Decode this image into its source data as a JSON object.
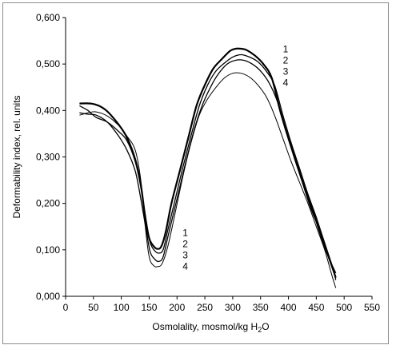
{
  "chart_data": {
    "type": "line",
    "title": "",
    "xlabel_parts": [
      "Osmolality, mosmol/kg H",
      "2",
      "O"
    ],
    "ylabel": "Deformability index, rel. units",
    "xlim": [
      0,
      550
    ],
    "ylim": [
      0,
      0.6
    ],
    "x_ticks": [
      0,
      50,
      100,
      150,
      200,
      250,
      300,
      350,
      400,
      450,
      500,
      550
    ],
    "y_ticks": [
      0,
      0.1,
      0.2,
      0.3,
      0.4,
      0.5,
      0.6
    ],
    "x_tick_labels": [
      "0",
      "50",
      "100",
      "150",
      "200",
      "250",
      "300",
      "350",
      "400",
      "450",
      "500",
      "550"
    ],
    "y_tick_labels": [
      "0,000",
      "0,100",
      "0,200",
      "0,300",
      "0,400",
      "0,500",
      "0,600"
    ],
    "grid": false,
    "legend": "none",
    "line_color": "#000000",
    "series": [
      {
        "label": "1",
        "stroke_width": 2.2,
        "points": [
          [
            25,
            0.415
          ],
          [
            45,
            0.415
          ],
          [
            60,
            0.41
          ],
          [
            75,
            0.398
          ],
          [
            95,
            0.37
          ],
          [
            110,
            0.342
          ],
          [
            125,
            0.295
          ],
          [
            135,
            0.24
          ],
          [
            143,
            0.17
          ],
          [
            150,
            0.125
          ],
          [
            158,
            0.108
          ],
          [
            165,
            0.102
          ],
          [
            172,
            0.108
          ],
          [
            180,
            0.14
          ],
          [
            190,
            0.2
          ],
          [
            205,
            0.27
          ],
          [
            220,
            0.34
          ],
          [
            235,
            0.41
          ],
          [
            250,
            0.455
          ],
          [
            265,
            0.49
          ],
          [
            280,
            0.51
          ],
          [
            295,
            0.528
          ],
          [
            305,
            0.533
          ],
          [
            315,
            0.533
          ],
          [
            325,
            0.53
          ],
          [
            340,
            0.518
          ],
          [
            355,
            0.5
          ],
          [
            370,
            0.47
          ],
          [
            385,
            0.4
          ],
          [
            400,
            0.34
          ],
          [
            415,
            0.285
          ],
          [
            430,
            0.23
          ],
          [
            445,
            0.18
          ],
          [
            460,
            0.125
          ],
          [
            475,
            0.075
          ],
          [
            485,
            0.04
          ]
        ]
      },
      {
        "label": "2",
        "stroke_width": 1.3,
        "points": [
          [
            25,
            0.41
          ],
          [
            40,
            0.4
          ],
          [
            55,
            0.385
          ],
          [
            75,
            0.375
          ],
          [
            95,
            0.355
          ],
          [
            110,
            0.335
          ],
          [
            125,
            0.29
          ],
          [
            135,
            0.235
          ],
          [
            145,
            0.16
          ],
          [
            152,
            0.115
          ],
          [
            160,
            0.098
          ],
          [
            167,
            0.093
          ],
          [
            175,
            0.1
          ],
          [
            183,
            0.14
          ],
          [
            195,
            0.2
          ],
          [
            210,
            0.275
          ],
          [
            225,
            0.345
          ],
          [
            240,
            0.41
          ],
          [
            255,
            0.455
          ],
          [
            270,
            0.485
          ],
          [
            285,
            0.502
          ],
          [
            300,
            0.515
          ],
          [
            315,
            0.52
          ],
          [
            330,
            0.515
          ],
          [
            345,
            0.505
          ],
          [
            360,
            0.485
          ],
          [
            375,
            0.455
          ],
          [
            390,
            0.39
          ],
          [
            405,
            0.33
          ],
          [
            420,
            0.275
          ],
          [
            435,
            0.22
          ],
          [
            450,
            0.17
          ],
          [
            465,
            0.115
          ],
          [
            480,
            0.06
          ],
          [
            485,
            0.035
          ]
        ]
      },
      {
        "label": "3",
        "stroke_width": 1.3,
        "points": [
          [
            25,
            0.395
          ],
          [
            40,
            0.392
          ],
          [
            55,
            0.39
          ],
          [
            75,
            0.375
          ],
          [
            95,
            0.345
          ],
          [
            110,
            0.315
          ],
          [
            125,
            0.27
          ],
          [
            135,
            0.21
          ],
          [
            145,
            0.14
          ],
          [
            152,
            0.095
          ],
          [
            160,
            0.08
          ],
          [
            167,
            0.075
          ],
          [
            175,
            0.085
          ],
          [
            185,
            0.135
          ],
          [
            200,
            0.21
          ],
          [
            215,
            0.285
          ],
          [
            230,
            0.355
          ],
          [
            245,
            0.41
          ],
          [
            260,
            0.45
          ],
          [
            275,
            0.48
          ],
          [
            290,
            0.5
          ],
          [
            305,
            0.508
          ],
          [
            320,
            0.508
          ],
          [
            335,
            0.5
          ],
          [
            350,
            0.485
          ],
          [
            365,
            0.46
          ],
          [
            380,
            0.42
          ],
          [
            395,
            0.36
          ],
          [
            410,
            0.3
          ],
          [
            425,
            0.245
          ],
          [
            440,
            0.19
          ],
          [
            455,
            0.145
          ],
          [
            470,
            0.09
          ],
          [
            485,
            0.05
          ]
        ]
      },
      {
        "label": "4",
        "stroke_width": 1.0,
        "points": [
          [
            25,
            0.39
          ],
          [
            40,
            0.395
          ],
          [
            55,
            0.397
          ],
          [
            75,
            0.388
          ],
          [
            95,
            0.368
          ],
          [
            110,
            0.345
          ],
          [
            125,
            0.315
          ],
          [
            135,
            0.25
          ],
          [
            143,
            0.15
          ],
          [
            150,
            0.085
          ],
          [
            158,
            0.066
          ],
          [
            165,
            0.064
          ],
          [
            173,
            0.07
          ],
          [
            183,
            0.105
          ],
          [
            195,
            0.17
          ],
          [
            210,
            0.255
          ],
          [
            225,
            0.33
          ],
          [
            240,
            0.39
          ],
          [
            255,
            0.425
          ],
          [
            270,
            0.45
          ],
          [
            285,
            0.47
          ],
          [
            300,
            0.48
          ],
          [
            315,
            0.48
          ],
          [
            330,
            0.472
          ],
          [
            345,
            0.455
          ],
          [
            360,
            0.43
          ],
          [
            375,
            0.39
          ],
          [
            390,
            0.34
          ],
          [
            405,
            0.29
          ],
          [
            420,
            0.245
          ],
          [
            435,
            0.2
          ],
          [
            450,
            0.15
          ],
          [
            465,
            0.1
          ],
          [
            478,
            0.045
          ],
          [
            485,
            0.018
          ]
        ]
      }
    ],
    "label_groups": [
      {
        "labels": [
          "1",
          "2",
          "3",
          "4"
        ],
        "x": 390,
        "y": 0.525
      },
      {
        "labels": [
          "1",
          "2",
          "3",
          "4"
        ],
        "x": 210,
        "y": 0.13
      }
    ]
  }
}
